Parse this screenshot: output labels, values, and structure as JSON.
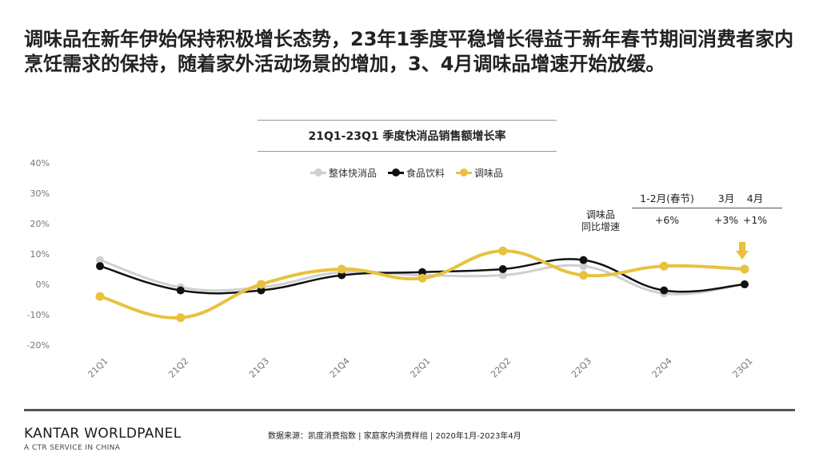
{
  "headline": "调味品在新年伊始保持积极增长态势，23年1季度平稳增长得益于新年春节期间消费者家内烹饪需求的保持，随着家外活动场景的增加，3、4月调味品增速开始放缓。",
  "colors": {
    "overall": "#cfcfcf",
    "food_beverage": "#111111",
    "condiment": "#e8c23e",
    "annotation_arrow": "#e8c23e"
  },
  "annotation": {
    "label_line1": "调味品",
    "label_line2": "同比增速",
    "headers": [
      "1-2月(春节)",
      "3月",
      "4月"
    ],
    "values": [
      "+6%",
      "+3%",
      "+1%"
    ]
  },
  "icons": {
    "annotation_arrow": "down-arrow-icon"
  },
  "footer": {
    "brand": "KANTAR WORLDPANEL",
    "brand_sub": "A CTR SERVICE IN CHINA",
    "source": "数据来源：凯度消费指数 | 家庭家内消费样组 | 2020年1月-2023年4月"
  },
  "chart_data": {
    "type": "line",
    "title": "21Q1-23Q1 季度快消品销售额增长率",
    "xlabel": "",
    "ylabel": "",
    "categories": [
      "21Q1",
      "21Q2",
      "21Q3",
      "21Q4",
      "22Q1",
      "22Q2",
      "22Q3",
      "22Q4",
      "23Q1"
    ],
    "y_ticks": [
      "40%",
      "30%",
      "20%",
      "10%",
      "0%",
      "-10%",
      "-20%"
    ],
    "ylim": [
      -20,
      40
    ],
    "grid": false,
    "legend_position": "top-center",
    "series": [
      {
        "name": "整体快消品",
        "color_key": "overall",
        "values": [
          8,
          -1,
          -1,
          4,
          3,
          3,
          6,
          -3,
          0
        ]
      },
      {
        "name": "食品饮料",
        "color_key": "food_beverage",
        "values": [
          6,
          -2,
          -2,
          3,
          4,
          5,
          8,
          -2,
          0
        ]
      },
      {
        "name": "调味品",
        "color_key": "condiment",
        "values": [
          -4,
          -11,
          0,
          5,
          2,
          11,
          3,
          6,
          5
        ]
      }
    ]
  }
}
